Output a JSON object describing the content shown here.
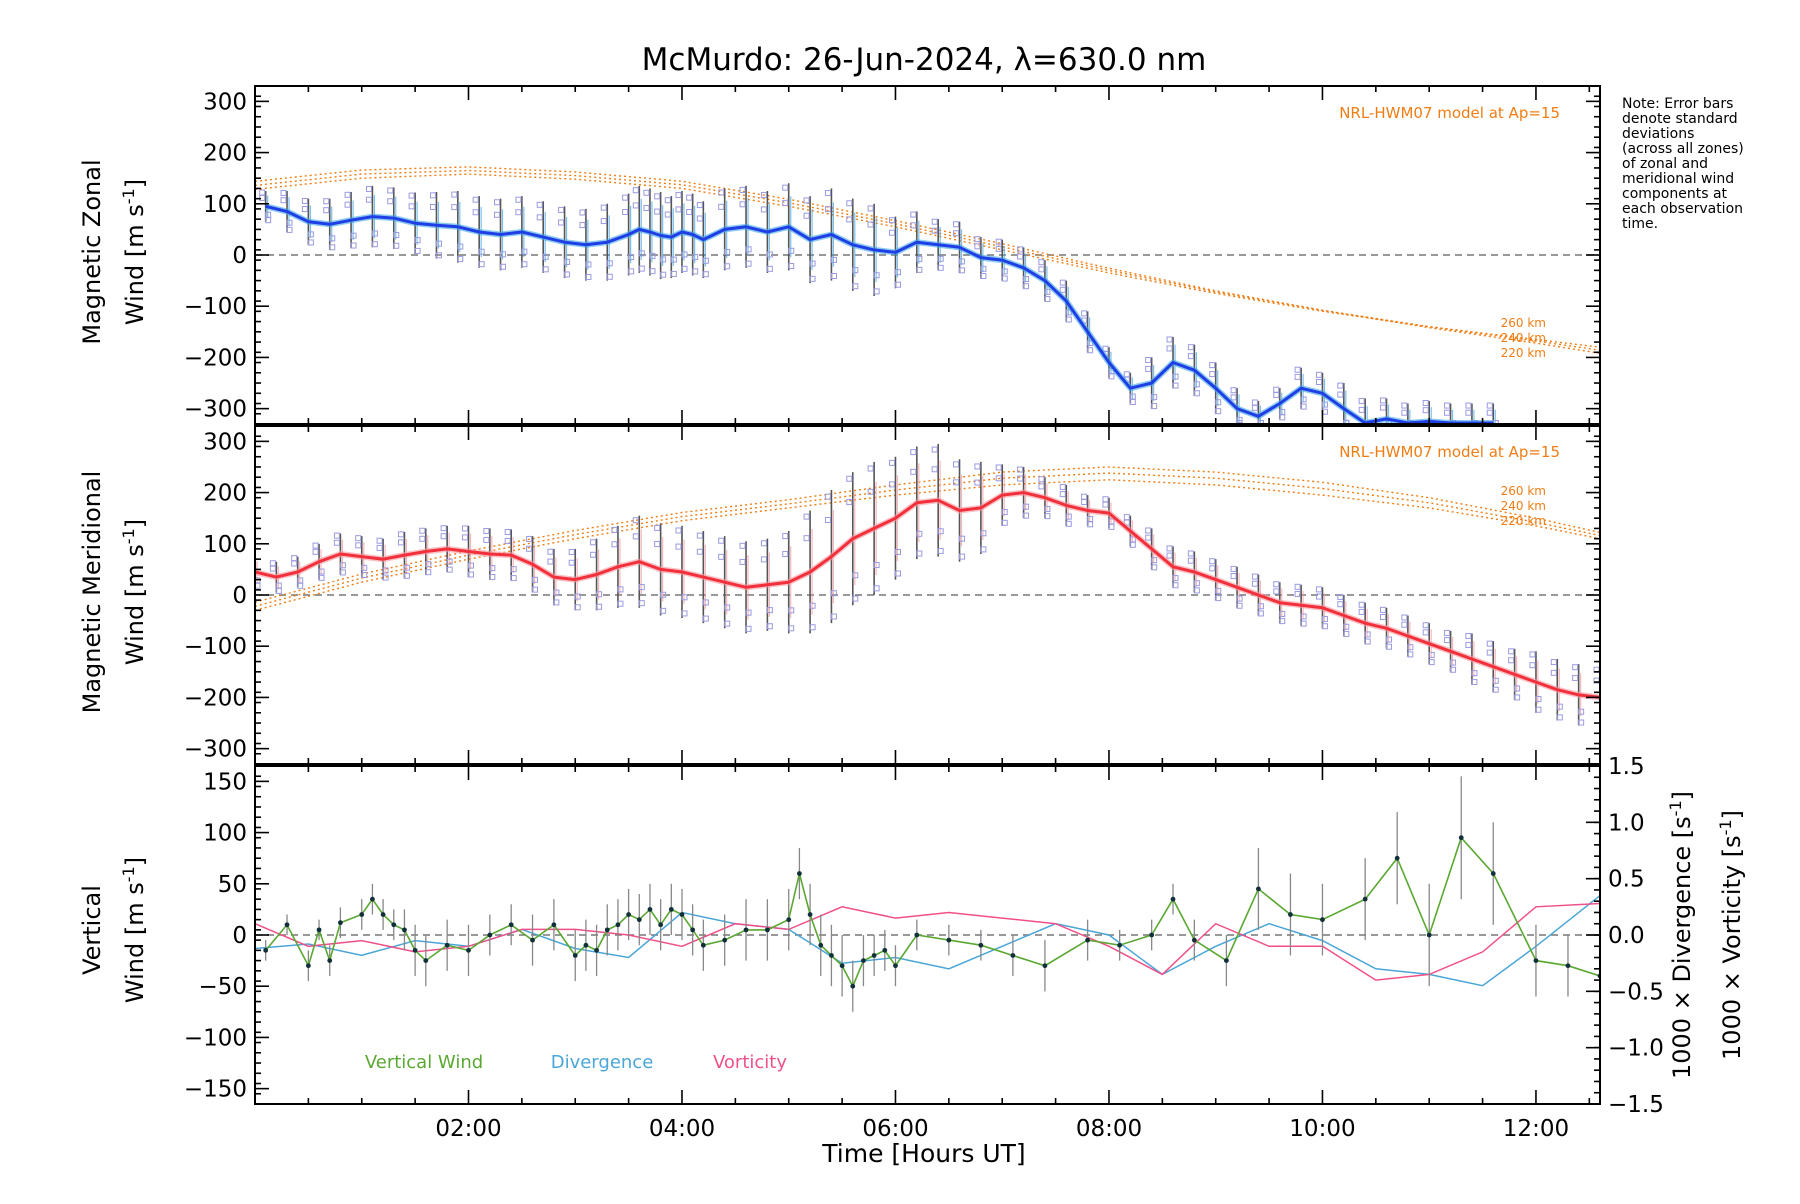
{
  "title": "McMurdo: 26-Jun-2024, λ=630.0 nm",
  "note": [
    "Note: Error bars",
    "denote standard",
    "deviations",
    "(across all zones)",
    "of zonal and",
    "meridional wind",
    "components at",
    "each observation",
    "time."
  ],
  "colors": {
    "zonal": "#1f3ee6",
    "zonal_light": "#3fa6e6",
    "meridional": "#f2303c",
    "meridional_light": "#f79aa0",
    "model": "#f07d14",
    "samples": "#9a9ae0",
    "vertical": "#5aa832",
    "divergence": "#4aa6d8",
    "vorticity": "#f0508a",
    "errorbar": "#555555"
  },
  "chart_data": [
    {
      "type": "line",
      "name": "zonal",
      "ylabel_line1": "Magnetic Zonal",
      "ylabel_line2": "Wind [m s",
      "ylabel_sup": "-1",
      "ylabel_end": "]",
      "ylim": [
        -330,
        330
      ],
      "yticks": [
        -300,
        -200,
        -100,
        0,
        100,
        200,
        300
      ],
      "yticklabels": [
        "−300",
        "−200",
        "−100",
        "0",
        "100",
        "200",
        "300"
      ],
      "model_label": "NRL-HWM07 model at Ap=15",
      "model_altitude_labels": [
        "260 km",
        "240 km",
        "220 km"
      ],
      "x": [
        0.1,
        0.3,
        0.5,
        0.7,
        0.9,
        1.1,
        1.3,
        1.5,
        1.7,
        1.9,
        2.1,
        2.3,
        2.5,
        2.7,
        2.9,
        3.1,
        3.3,
        3.5,
        3.6,
        3.7,
        3.8,
        3.9,
        4.0,
        4.1,
        4.2,
        4.4,
        4.6,
        4.8,
        5.0,
        5.2,
        5.4,
        5.6,
        5.8,
        6.0,
        6.2,
        6.4,
        6.6,
        6.8,
        7.0,
        7.2,
        7.4,
        7.6,
        7.8,
        8.0,
        8.2,
        8.4,
        8.6,
        8.8,
        9.0,
        9.2,
        9.4,
        9.6,
        9.8,
        10.0,
        10.2,
        10.4,
        10.6,
        10.8,
        11.0,
        11.2,
        11.4,
        11.6
      ],
      "y": [
        95,
        85,
        65,
        60,
        68,
        75,
        72,
        62,
        58,
        55,
        45,
        40,
        45,
        35,
        25,
        20,
        25,
        40,
        50,
        45,
        38,
        35,
        45,
        40,
        30,
        50,
        55,
        45,
        55,
        30,
        40,
        20,
        10,
        5,
        25,
        20,
        15,
        -5,
        -10,
        -25,
        -50,
        -90,
        -150,
        -210,
        -260,
        -250,
        -210,
        -225,
        -260,
        -300,
        -315,
        -290,
        -260,
        -270,
        -300,
        -330,
        -320,
        -330,
        -325,
        -330,
        -330,
        -330
      ],
      "err": [
        30,
        40,
        45,
        50,
        55,
        60,
        60,
        60,
        65,
        70,
        70,
        70,
        70,
        70,
        70,
        70,
        75,
        80,
        85,
        85,
        85,
        80,
        80,
        80,
        75,
        80,
        80,
        80,
        85,
        85,
        90,
        90,
        90,
        70,
        60,
        50,
        50,
        40,
        40,
        40,
        40,
        40,
        40,
        30,
        30,
        50,
        50,
        50,
        50,
        40,
        30,
        30,
        40,
        40,
        50,
        50,
        40,
        40,
        40,
        40,
        40,
        40
      ],
      "model_series": [
        {
          "x": [
            0.0,
            1.0,
            2.0,
            3.0,
            4.0,
            5.0,
            6.0,
            7.0,
            8.0,
            9.0,
            10.0,
            11.0,
            12.0,
            12.6
          ],
          "y": [
            128,
            150,
            158,
            148,
            130,
            95,
            55,
            10,
            -35,
            -75,
            -110,
            -140,
            -165,
            -180
          ]
        },
        {
          "x": [
            0.0,
            1.0,
            2.0,
            3.0,
            4.0,
            5.0,
            6.0,
            7.0,
            8.0,
            9.0,
            10.0,
            11.0,
            12.0,
            12.6
          ],
          "y": [
            136,
            158,
            165,
            155,
            137,
            102,
            61,
            16,
            -30,
            -72,
            -108,
            -140,
            -168,
            -186
          ]
        },
        {
          "x": [
            0.0,
            1.0,
            2.0,
            3.0,
            4.0,
            5.0,
            6.0,
            7.0,
            8.0,
            9.0,
            10.0,
            11.0,
            12.0,
            12.6
          ],
          "y": [
            144,
            166,
            172,
            162,
            144,
            109,
            67,
            22,
            -26,
            -70,
            -108,
            -142,
            -172,
            -192
          ]
        }
      ]
    },
    {
      "type": "line",
      "name": "meridional",
      "ylabel_line1": "Magnetic Meridional",
      "ylabel_line2": "Wind [m s",
      "ylabel_sup": "-1",
      "ylabel_end": "]",
      "ylim": [
        -330,
        330
      ],
      "yticks": [
        -300,
        -200,
        -100,
        0,
        100,
        200,
        300
      ],
      "yticklabels": [
        "−300",
        "−200",
        "−100",
        "0",
        "100",
        "200",
        "300"
      ],
      "model_label": "NRL-HWM07 model at Ap=15",
      "model_altitude_labels": [
        "260 km",
        "240 km",
        "220 km"
      ],
      "x": [
        0.0,
        0.2,
        0.4,
        0.6,
        0.8,
        1.0,
        1.2,
        1.4,
        1.6,
        1.8,
        2.0,
        2.2,
        2.4,
        2.6,
        2.8,
        3.0,
        3.2,
        3.4,
        3.6,
        3.8,
        4.0,
        4.2,
        4.4,
        4.6,
        4.8,
        5.0,
        5.2,
        5.4,
        5.6,
        5.8,
        6.0,
        6.2,
        6.4,
        6.6,
        6.8,
        7.0,
        7.2,
        7.4,
        7.6,
        7.8,
        8.0,
        8.2,
        8.4,
        8.6,
        8.8,
        9.0,
        9.2,
        9.4,
        9.6,
        9.8,
        10.0,
        10.2,
        10.4,
        10.6,
        10.8,
        11.0,
        11.2,
        11.4,
        11.6,
        11.8,
        12.0,
        12.2,
        12.4,
        12.6
      ],
      "y": [
        45,
        35,
        45,
        65,
        80,
        75,
        70,
        78,
        85,
        90,
        85,
        80,
        78,
        60,
        35,
        30,
        40,
        55,
        65,
        50,
        45,
        35,
        25,
        15,
        20,
        25,
        45,
        75,
        110,
        130,
        150,
        180,
        185,
        165,
        170,
        195,
        200,
        190,
        175,
        165,
        160,
        125,
        90,
        55,
        45,
        30,
        15,
        0,
        -15,
        -20,
        -25,
        -40,
        -55,
        -65,
        -80,
        -95,
        -110,
        -125,
        -140,
        -155,
        -170,
        -185,
        -195,
        -200
      ],
      "err": [
        30,
        30,
        30,
        35,
        40,
        40,
        40,
        45,
        45,
        45,
        50,
        50,
        50,
        55,
        55,
        60,
        70,
        80,
        90,
        90,
        90,
        90,
        90,
        90,
        90,
        100,
        120,
        130,
        130,
        130,
        120,
        110,
        110,
        100,
        90,
        60,
        50,
        40,
        40,
        30,
        30,
        30,
        40,
        40,
        40,
        40,
        40,
        40,
        40,
        40,
        40,
        40,
        40,
        40,
        40,
        40,
        40,
        50,
        50,
        50,
        60,
        60,
        60,
        60
      ],
      "model_series": [
        {
          "x": [
            0.0,
            1.0,
            2.0,
            3.0,
            4.0,
            5.0,
            6.0,
            7.0,
            8.0,
            9.0,
            10.0,
            11.0,
            12.0,
            12.6
          ],
          "y": [
            -30,
            25,
            70,
            110,
            145,
            170,
            195,
            215,
            225,
            215,
            195,
            170,
            135,
            110
          ]
        },
        {
          "x": [
            0.0,
            1.0,
            2.0,
            3.0,
            4.0,
            5.0,
            6.0,
            7.0,
            8.0,
            9.0,
            10.0,
            11.0,
            12.0,
            12.6
          ],
          "y": [
            -22,
            33,
            78,
            118,
            153,
            178,
            205,
            228,
            238,
            228,
            208,
            180,
            142,
            116
          ]
        },
        {
          "x": [
            0.0,
            1.0,
            2.0,
            3.0,
            4.0,
            5.0,
            6.0,
            7.0,
            8.0,
            9.0,
            10.0,
            11.0,
            12.0,
            12.6
          ],
          "y": [
            -14,
            41,
            86,
            126,
            161,
            186,
            215,
            240,
            250,
            240,
            220,
            190,
            150,
            122
          ]
        }
      ]
    },
    {
      "type": "line",
      "name": "vertical",
      "ylabel_line1": "Vertical",
      "ylabel_line2": "Wind [m s",
      "ylabel_sup": "-1",
      "ylabel_end": "]",
      "ylim": [
        -165,
        165
      ],
      "yticks": [
        -150,
        -100,
        -50,
        0,
        50,
        100,
        150
      ],
      "yticklabels": [
        "−150",
        "−100",
        "−50",
        "0",
        "50",
        "100",
        "150"
      ],
      "y2lim": [
        -1.5,
        1.5
      ],
      "y2ticks": [
        -1.5,
        -1.0,
        -0.5,
        0.0,
        0.5,
        1.0,
        1.5
      ],
      "y2ticklabels": [
        "−1.5",
        "−1.0",
        "−0.5",
        "0.0",
        "0.5",
        "1.0",
        "1.5"
      ],
      "y2label_a": "1000 × Divergence [s",
      "y2label_b": "1000 × Vorticity [s",
      "y2label_sup": "-1",
      "y2label_end": "]",
      "legend": [
        "Vertical Wind",
        "Divergence",
        "Vorticity"
      ],
      "xlim": [
        0.0,
        12.6
      ],
      "xticks": [
        2,
        4,
        6,
        8,
        10,
        12
      ],
      "xticklabels": [
        "02:00",
        "04:00",
        "06:00",
        "08:00",
        "10:00",
        "12:00"
      ],
      "xlabel": "Time [Hours UT]",
      "vertical_x": [
        0.1,
        0.3,
        0.5,
        0.6,
        0.7,
        0.8,
        1.0,
        1.1,
        1.2,
        1.3,
        1.4,
        1.5,
        1.6,
        1.8,
        2.0,
        2.2,
        2.4,
        2.6,
        2.8,
        3.0,
        3.1,
        3.2,
        3.3,
        3.4,
        3.5,
        3.6,
        3.7,
        3.8,
        3.9,
        4.0,
        4.1,
        4.2,
        4.4,
        4.6,
        4.8,
        5.0,
        5.1,
        5.2,
        5.3,
        5.4,
        5.5,
        5.6,
        5.7,
        5.8,
        5.9,
        6.0,
        6.2,
        6.5,
        6.8,
        7.1,
        7.4,
        7.8,
        8.1,
        8.4,
        8.6,
        8.8,
        9.1,
        9.4,
        9.7,
        10.0,
        10.4,
        10.7,
        11.0,
        11.3,
        11.6,
        12.0,
        12.3,
        12.6
      ],
      "vertical_y": [
        -15,
        10,
        -30,
        5,
        -25,
        12,
        20,
        35,
        20,
        10,
        5,
        -15,
        -25,
        -10,
        -15,
        0,
        10,
        -5,
        10,
        -20,
        -10,
        -15,
        5,
        10,
        20,
        15,
        25,
        10,
        25,
        20,
        5,
        -10,
        -5,
        5,
        5,
        15,
        60,
        20,
        -10,
        -20,
        -30,
        -50,
        -25,
        -20,
        -15,
        -30,
        0,
        -5,
        -10,
        -20,
        -30,
        -5,
        -10,
        0,
        35,
        -5,
        -25,
        45,
        20,
        15,
        35,
        75,
        0,
        95,
        60,
        -25,
        -30,
        -40
      ],
      "vertical_err": [
        10,
        10,
        15,
        10,
        15,
        15,
        15,
        15,
        15,
        15,
        20,
        25,
        25,
        25,
        25,
        20,
        20,
        25,
        25,
        25,
        25,
        25,
        25,
        25,
        25,
        25,
        25,
        25,
        25,
        25,
        25,
        25,
        25,
        30,
        30,
        30,
        25,
        30,
        30,
        30,
        30,
        25,
        25,
        20,
        20,
        20,
        15,
        15,
        15,
        20,
        25,
        20,
        15,
        15,
        15,
        20,
        25,
        40,
        40,
        35,
        40,
        45,
        50,
        60,
        50,
        35,
        30,
        25
      ],
      "div_x": [
        0.0,
        0.5,
        1.0,
        1.5,
        2.0,
        2.5,
        3.0,
        3.5,
        4.0,
        4.5,
        5.0,
        5.5,
        6.0,
        6.5,
        7.0,
        7.5,
        8.0,
        8.5,
        9.0,
        9.5,
        10.0,
        10.5,
        11.0,
        11.5,
        12.0,
        12.6
      ],
      "div_y": [
        -0.12,
        -0.08,
        -0.18,
        -0.05,
        -0.1,
        0.05,
        -0.12,
        -0.2,
        0.2,
        0.1,
        0.05,
        -0.25,
        -0.2,
        -0.3,
        -0.1,
        0.1,
        0.0,
        -0.35,
        -0.1,
        0.1,
        -0.05,
        -0.3,
        -0.35,
        -0.45,
        -0.1,
        0.35
      ],
      "vor_x": [
        0.0,
        0.5,
        1.0,
        1.5,
        2.0,
        2.5,
        3.0,
        3.5,
        4.0,
        4.5,
        5.0,
        5.5,
        6.0,
        6.5,
        7.0,
        7.5,
        8.0,
        8.5,
        9.0,
        9.5,
        10.0,
        10.5,
        11.0,
        11.5,
        12.0,
        12.6
      ],
      "vor_y": [
        0.1,
        -0.1,
        -0.05,
        -0.15,
        -0.1,
        0.05,
        0.05,
        0.0,
        -0.1,
        0.1,
        0.05,
        0.25,
        0.15,
        0.2,
        0.15,
        0.1,
        -0.1,
        -0.35,
        0.1,
        -0.1,
        -0.1,
        -0.4,
        -0.35,
        -0.15,
        0.25,
        0.28
      ]
    }
  ]
}
